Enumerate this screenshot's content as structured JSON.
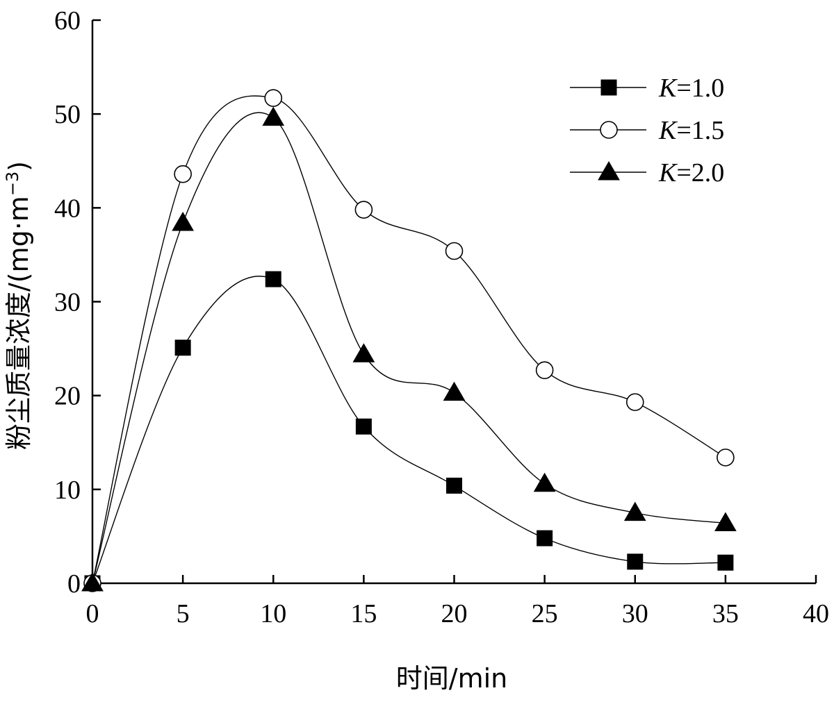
{
  "chart_data": {
    "type": "line",
    "xlabel": "时间/min",
    "ylabel_main": "粉尘质量浓度/(mg·m",
    "ylabel_sup": "−3",
    "ylabel_close": ")",
    "xlim": [
      0,
      40
    ],
    "ylim": [
      0,
      60
    ],
    "xticks": [
      "0",
      "5",
      "10",
      "15",
      "20",
      "25",
      "30",
      "35",
      "40"
    ],
    "yticks": [
      "0",
      "10",
      "20",
      "30",
      "40",
      "50",
      "60"
    ],
    "grid": false,
    "legend_position": "top-right",
    "x": [
      0,
      5,
      10,
      15,
      20,
      25,
      30,
      35
    ],
    "series": [
      {
        "name_var": "K",
        "name_rest": "=1.0",
        "marker": "square",
        "values": [
          0,
          25.1,
          32.4,
          16.7,
          10.4,
          4.8,
          2.3,
          2.2
        ]
      },
      {
        "name_var": "K",
        "name_rest": "=1.5",
        "marker": "circle",
        "values": [
          0,
          43.6,
          51.7,
          39.8,
          35.4,
          22.7,
          19.3,
          13.4
        ]
      },
      {
        "name_var": "K",
        "name_rest": "=2.0",
        "marker": "triangle",
        "values": [
          0,
          38.4,
          49.6,
          24.4,
          20.3,
          10.6,
          7.5,
          6.4
        ]
      }
    ]
  }
}
